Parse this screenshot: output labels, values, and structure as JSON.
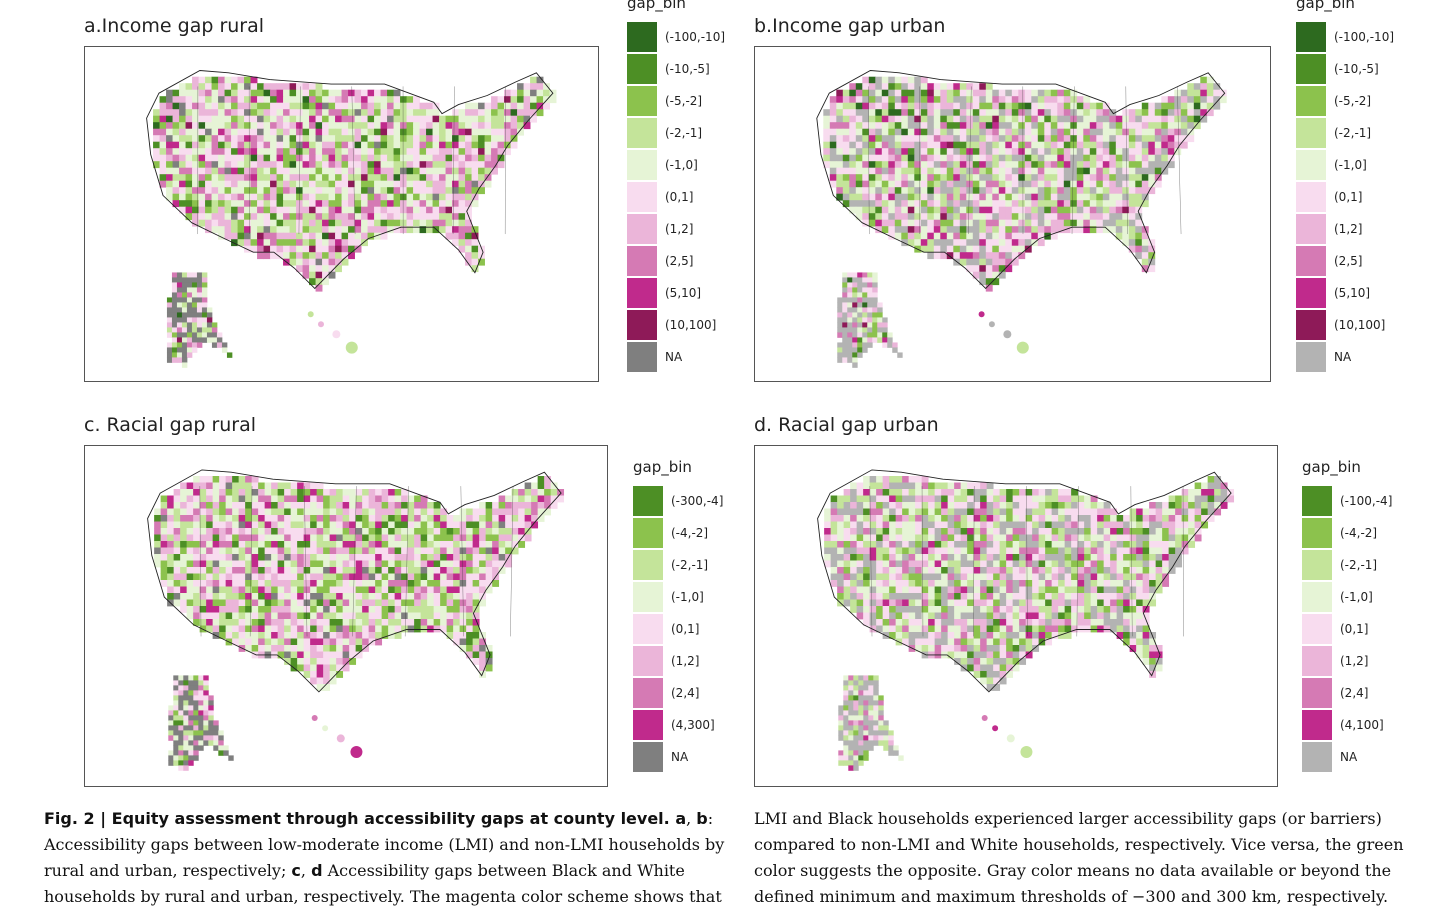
{
  "panels": [
    {
      "title": "a.Income gap rural",
      "legend_title": "gap_bin",
      "legend": [
        {
          "label": "(-100,-10]",
          "color": "#2d6a1f"
        },
        {
          "label": "(-10,-5]",
          "color": "#4d8f25"
        },
        {
          "label": "(-5,-2]",
          "color": "#8cc24d"
        },
        {
          "label": "(-2,-1]",
          "color": "#c4e49a"
        },
        {
          "label": "(-1,0]",
          "color": "#e6f4d6"
        },
        {
          "label": "(0,1]",
          "color": "#f8dcef"
        },
        {
          "label": "(1,2]",
          "color": "#ebb5d9"
        },
        {
          "label": "(2,5]",
          "color": "#d57ab4"
        },
        {
          "label": "(5,10]",
          "color": "#c02a8c"
        },
        {
          "label": "(10,100]",
          "color": "#8e1a58"
        },
        {
          "label": "NA",
          "color": "#7f7f7f"
        }
      ]
    },
    {
      "title": "b.Income gap urban",
      "legend_title": "gap_bin",
      "legend": [
        {
          "label": "(-100,-10]",
          "color": "#2d6a1f"
        },
        {
          "label": "(-10,-5]",
          "color": "#4d8f25"
        },
        {
          "label": "(-5,-2]",
          "color": "#8cc24d"
        },
        {
          "label": "(-2,-1]",
          "color": "#c4e49a"
        },
        {
          "label": "(-1,0]",
          "color": "#e6f4d6"
        },
        {
          "label": "(0,1]",
          "color": "#f8dcef"
        },
        {
          "label": "(1,2]",
          "color": "#ebb5d9"
        },
        {
          "label": "(2,5]",
          "color": "#d57ab4"
        },
        {
          "label": "(5,10]",
          "color": "#c02a8c"
        },
        {
          "label": "(10,100]",
          "color": "#8e1a58"
        },
        {
          "label": "NA",
          "color": "#b3b3b3"
        }
      ]
    },
    {
      "title": "c. Racial gap rural",
      "legend_title": "gap_bin",
      "legend": [
        {
          "label": "(-300,-4]",
          "color": "#4d8f25"
        },
        {
          "label": "(-4,-2]",
          "color": "#8cc24d"
        },
        {
          "label": "(-2,-1]",
          "color": "#c4e49a"
        },
        {
          "label": "(-1,0]",
          "color": "#e6f4d6"
        },
        {
          "label": "(0,1]",
          "color": "#f8dcef"
        },
        {
          "label": "(1,2]",
          "color": "#ebb5d9"
        },
        {
          "label": "(2,4]",
          "color": "#d57ab4"
        },
        {
          "label": "(4,300]",
          "color": "#c02a8c"
        },
        {
          "label": "NA",
          "color": "#7f7f7f"
        }
      ]
    },
    {
      "title": "d. Racial gap urban",
      "legend_title": "gap_bin",
      "legend": [
        {
          "label": "(-100,-4]",
          "color": "#4d8f25"
        },
        {
          "label": "(-4,-2]",
          "color": "#8cc24d"
        },
        {
          "label": "(-2,-1]",
          "color": "#c4e49a"
        },
        {
          "label": "(-1,0]",
          "color": "#e6f4d6"
        },
        {
          "label": "(0,1]",
          "color": "#f8dcef"
        },
        {
          "label": "(1,2]",
          "color": "#ebb5d9"
        },
        {
          "label": "(2,4]",
          "color": "#d57ab4"
        },
        {
          "label": "(4,100]",
          "color": "#c02a8c"
        },
        {
          "label": "NA",
          "color": "#b3b3b3"
        }
      ]
    }
  ],
  "caption": {
    "left_bold": "Fig. 2 | Equity assessment through accessibility gaps at county level. ",
    "left_bold_ab": "a",
    "left_sep1": ", ",
    "left_bold_b": "b",
    "left_colon": ":",
    "left_text1": " Accessibility gaps between low-moderate income (LMI) and non-LMI households by rural and urban, respectively; ",
    "left_bold_c": "c",
    "left_sep2": ", ",
    "left_bold_d": "d",
    "left_text2": " Accessibility gaps between Black and White households by rural and urban, respectively. The magenta color scheme shows that",
    "right_text": "LMI and Black households experienced larger accessibility gaps (or barriers) compared to non-LMI and White households, respectively. Vice versa, the green color suggests the opposite. Gray color means no data available or beyond the defined minimum and maximum thresholds of −300 and 300 km, respectively."
  }
}
